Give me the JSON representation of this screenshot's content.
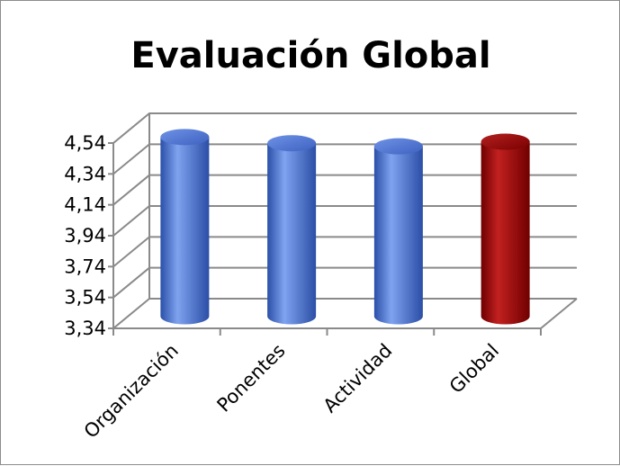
{
  "chart_data": {
    "type": "bar",
    "title": "Evaluación Global",
    "categories": [
      "Organización",
      "Ponentes",
      "Actividad",
      "Global"
    ],
    "values": [
      4.5,
      4.46,
      4.44,
      4.47
    ],
    "yticks": [
      "3,34",
      "3,54",
      "3,74",
      "3,94",
      "4,14",
      "4,34",
      "4,54"
    ],
    "ylim": [
      3.34,
      4.54
    ],
    "xlabel": "",
    "ylabel": "",
    "grid": true,
    "legend": "none",
    "style": "3d-cylinder",
    "colors": [
      "#4a72d0",
      "#4a72d0",
      "#4a72d0",
      "#b01010"
    ]
  }
}
